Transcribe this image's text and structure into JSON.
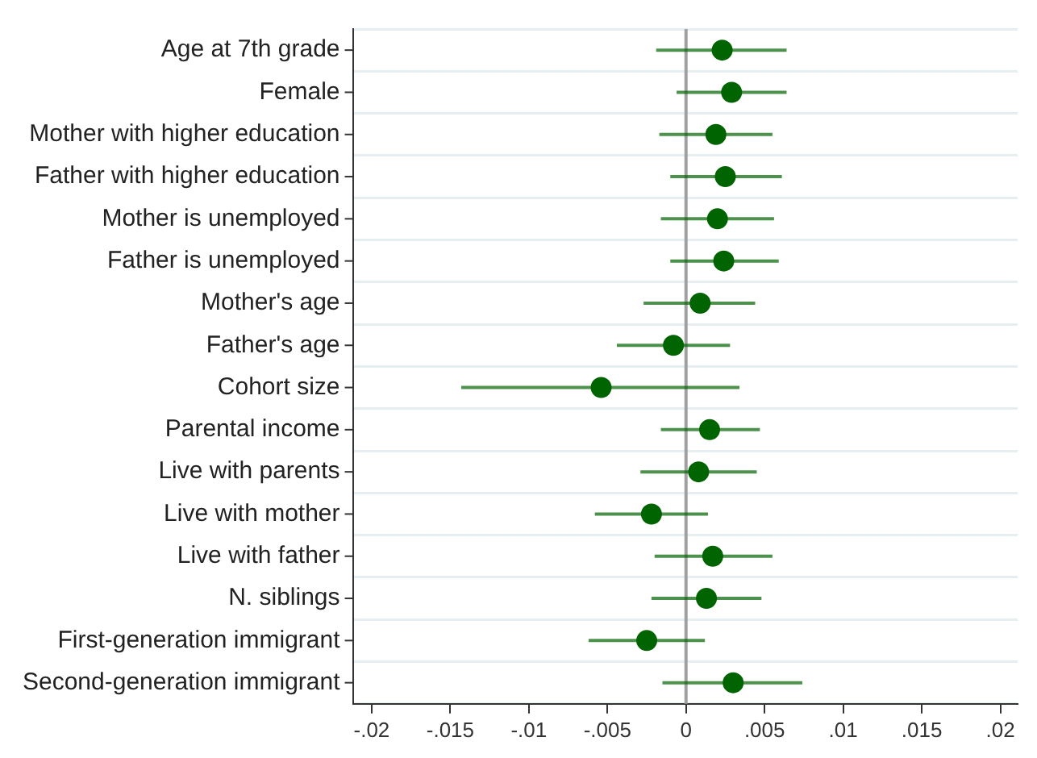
{
  "chart_data": {
    "type": "scatter",
    "orientation": "horizontal",
    "categories": [
      "Age at 7th grade",
      "Female",
      "Mother with higher education",
      "Father with higher education",
      "Mother is unemployed",
      "Father is unemployed",
      "Mother's age",
      "Father's age",
      "Cohort size",
      "Parental income",
      "Live with parents",
      "Live with mother",
      "Live with father",
      "N. siblings",
      "First-generation immigrant",
      "Second-generation immigrant"
    ],
    "series": [
      {
        "color": "#006400",
        "values": [
          0.0023,
          0.0029,
          0.0019,
          0.0025,
          0.002,
          0.0024,
          0.0009,
          -0.0008,
          -0.0054,
          0.0015,
          0.0008,
          -0.0022,
          0.0017,
          0.0013,
          -0.0025,
          0.003
        ],
        "errors": [
          [
            -0.0019,
            0.0064
          ],
          [
            -0.0006,
            0.0064
          ],
          [
            -0.0017,
            0.0055
          ],
          [
            -0.001,
            0.0061
          ],
          [
            -0.0016,
            0.0056
          ],
          [
            -0.001,
            0.0059
          ],
          [
            -0.0027,
            0.0044
          ],
          [
            -0.0044,
            0.0028
          ],
          [
            -0.0143,
            0.0034
          ],
          [
            -0.0016,
            0.0047
          ],
          [
            -0.0029,
            0.0045
          ],
          [
            -0.0058,
            0.0014
          ],
          [
            -0.002,
            0.0055
          ],
          [
            -0.0022,
            0.0048
          ],
          [
            -0.0062,
            0.0012
          ],
          [
            -0.0015,
            0.0074
          ]
        ]
      }
    ],
    "xlim": [
      -0.0212,
      0.0211
    ],
    "xticks": [
      {
        "value": -0.02,
        "label": "-.02"
      },
      {
        "value": -0.015,
        "label": "-.015"
      },
      {
        "value": -0.01,
        "label": "-.01"
      },
      {
        "value": -0.005,
        "label": "-.005"
      },
      0,
      {
        "value": 0.005,
        "label": ".005"
      },
      {
        "value": 0.01,
        "label": ".01"
      },
      {
        "value": 0.015,
        "label": ".015"
      },
      {
        "value": 0.02,
        "label": ".02"
      }
    ],
    "ref_lines": [
      {
        "axis": "x",
        "value": 0,
        "color": "#a0a0a0"
      }
    ],
    "grid": "y",
    "legend": false,
    "marker": "circle"
  }
}
